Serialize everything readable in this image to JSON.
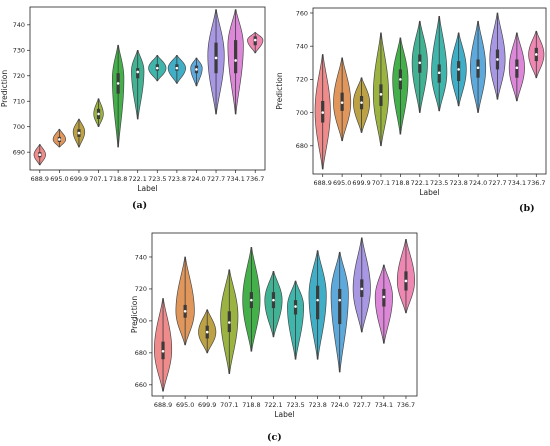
{
  "chart_data": [
    {
      "panel": "(a)",
      "type": "violin",
      "xlabel": "Label",
      "ylabel": "Prediction",
      "ylim": [
        683,
        747
      ],
      "yticks": [
        690,
        700,
        710,
        720,
        730,
        740
      ],
      "categories": [
        "688.9",
        "695.0",
        "699.9",
        "707.1",
        "718.8",
        "722.1",
        "723.5",
        "723.8",
        "724.0",
        "727.7",
        "734.1",
        "736.7"
      ],
      "colors": [
        "#f08b8b",
        "#e1975b",
        "#bca244",
        "#9bb341",
        "#43b04a",
        "#41b293",
        "#3fb5ab",
        "#3faec6",
        "#5ea9dc",
        "#a897e3",
        "#dc87d8",
        "#ee88b2"
      ],
      "violins": [
        {
          "min": 685,
          "max": 693,
          "q1": 688,
          "median": 689,
          "q3": 690,
          "peak": 689,
          "width": 0.55
        },
        {
          "min": 692,
          "max": 699,
          "q1": 694,
          "median": 695,
          "q3": 696,
          "peak": 695,
          "width": 0.6
        },
        {
          "min": 692,
          "max": 703,
          "q1": 696,
          "median": 697.5,
          "q3": 699,
          "peak": 698,
          "width": 0.55
        },
        {
          "min": 700,
          "max": 711,
          "q1": 703,
          "median": 705,
          "q3": 707,
          "peak": 705,
          "width": 0.45
        },
        {
          "min": 692,
          "max": 732,
          "q1": 713,
          "median": 717,
          "q3": 721,
          "peak": 719,
          "width": 0.55
        },
        {
          "min": 703,
          "max": 730,
          "q1": 719,
          "median": 721.5,
          "q3": 723,
          "peak": 722,
          "width": 0.6
        },
        {
          "min": 718,
          "max": 728,
          "q1": 722,
          "median": 723,
          "q3": 724.5,
          "peak": 723,
          "width": 0.85
        },
        {
          "min": 717,
          "max": 728,
          "q1": 722,
          "median": 723,
          "q3": 724.5,
          "peak": 723,
          "width": 0.85
        },
        {
          "min": 716,
          "max": 727,
          "q1": 721,
          "median": 722.5,
          "q3": 724,
          "peak": 723,
          "width": 0.55
        },
        {
          "min": 705,
          "max": 746,
          "q1": 721,
          "median": 727,
          "q3": 733,
          "peak": 728,
          "width": 0.8
        },
        {
          "min": 705,
          "max": 746,
          "q1": 721,
          "median": 726,
          "q3": 734,
          "peak": 732,
          "width": 0.75
        },
        {
          "min": 729,
          "max": 737,
          "q1": 732,
          "median": 734,
          "q3": 735.5,
          "peak": 734,
          "width": 0.75
        }
      ]
    },
    {
      "panel": "(b)",
      "type": "violin",
      "xlabel": "Label",
      "ylabel": "Prediction",
      "ylim": [
        663,
        763
      ],
      "yticks": [
        680,
        700,
        720,
        740,
        760
      ],
      "categories": [
        "688.9",
        "695.0",
        "699.9",
        "707.1",
        "718.8",
        "722.1",
        "723.5",
        "723.8",
        "724.0",
        "727.7",
        "734.1",
        "736.7"
      ],
      "colors": [
        "#f08b8b",
        "#e1975b",
        "#bca244",
        "#9bb341",
        "#43b04a",
        "#41b293",
        "#3fb5ab",
        "#3faec6",
        "#5ea9dc",
        "#a897e3",
        "#dc87d8",
        "#ee88b2"
      ],
      "violins": [
        {
          "min": 666,
          "max": 735,
          "q1": 694,
          "median": 700,
          "q3": 707,
          "peak": 701,
          "width": 0.75
        },
        {
          "min": 683,
          "max": 733,
          "q1": 701,
          "median": 706,
          "q3": 712,
          "peak": 706,
          "width": 0.85
        },
        {
          "min": 688,
          "max": 721,
          "q1": 702,
          "median": 706,
          "q3": 710,
          "peak": 706,
          "width": 0.8
        },
        {
          "min": 680,
          "max": 748,
          "q1": 704,
          "median": 711,
          "q3": 717,
          "peak": 711,
          "width": 0.75
        },
        {
          "min": 687,
          "max": 745,
          "q1": 714,
          "median": 720,
          "q3": 726,
          "peak": 720,
          "width": 0.75
        },
        {
          "min": 700,
          "max": 755,
          "q1": 724,
          "median": 730,
          "q3": 735,
          "peak": 730,
          "width": 0.75
        },
        {
          "min": 701,
          "max": 758,
          "q1": 718,
          "median": 724,
          "q3": 729,
          "peak": 724,
          "width": 0.75
        },
        {
          "min": 704,
          "max": 748,
          "q1": 719,
          "median": 726,
          "q3": 731,
          "peak": 726,
          "width": 0.75
        },
        {
          "min": 700,
          "max": 755,
          "q1": 721,
          "median": 727,
          "q3": 732,
          "peak": 727,
          "width": 0.75
        },
        {
          "min": 708,
          "max": 760,
          "q1": 726,
          "median": 732,
          "q3": 738,
          "peak": 732,
          "width": 0.75
        },
        {
          "min": 707,
          "max": 748,
          "q1": 721,
          "median": 727,
          "q3": 732,
          "peak": 727,
          "width": 0.75
        },
        {
          "min": 721,
          "max": 749,
          "q1": 731,
          "median": 735,
          "q3": 739,
          "peak": 735,
          "width": 0.75
        }
      ]
    },
    {
      "panel": "(c)",
      "type": "violin",
      "xlabel": "Label",
      "ylabel": "Prediction",
      "ylim": [
        653,
        755
      ],
      "yticks": [
        660,
        680,
        700,
        720,
        740
      ],
      "categories": [
        "688.9",
        "695.0",
        "699.9",
        "707.1",
        "718.8",
        "722.1",
        "723.5",
        "723.8",
        "724.0",
        "727.7",
        "734.1",
        "736.7"
      ],
      "colors": [
        "#f08b8b",
        "#e1975b",
        "#bca244",
        "#9bb341",
        "#43b04a",
        "#41b293",
        "#3fb5ab",
        "#3faec6",
        "#5ea9dc",
        "#a897e3",
        "#dc87d8",
        "#ee88b2"
      ],
      "violins": [
        {
          "min": 656,
          "max": 714,
          "q1": 676,
          "median": 681,
          "q3": 687,
          "peak": 682,
          "width": 0.75
        },
        {
          "min": 685,
          "max": 740,
          "q1": 702,
          "median": 706,
          "q3": 710,
          "peak": 706,
          "width": 0.8
        },
        {
          "min": 680,
          "max": 707,
          "q1": 689,
          "median": 693,
          "q3": 697,
          "peak": 693,
          "width": 0.75
        },
        {
          "min": 667,
          "max": 732,
          "q1": 693,
          "median": 699,
          "q3": 706,
          "peak": 703,
          "width": 0.75
        },
        {
          "min": 681,
          "max": 746,
          "q1": 708,
          "median": 713,
          "q3": 718,
          "peak": 713,
          "width": 0.75
        },
        {
          "min": 690,
          "max": 731,
          "q1": 708,
          "median": 713,
          "q3": 718,
          "peak": 713,
          "width": 0.75
        },
        {
          "min": 676,
          "max": 725,
          "q1": 704,
          "median": 709,
          "q3": 713,
          "peak": 709,
          "width": 0.7
        },
        {
          "min": 676,
          "max": 744,
          "q1": 701,
          "median": 713,
          "q3": 722,
          "peak": 716,
          "width": 0.75
        },
        {
          "min": 668,
          "max": 743,
          "q1": 698,
          "median": 713,
          "q3": 720,
          "peak": 717,
          "width": 0.75
        },
        {
          "min": 693,
          "max": 752,
          "q1": 715,
          "median": 720,
          "q3": 726,
          "peak": 720,
          "width": 0.75
        },
        {
          "min": 686,
          "max": 735,
          "q1": 709,
          "median": 715,
          "q3": 720,
          "peak": 715,
          "width": 0.75
        },
        {
          "min": 705,
          "max": 751,
          "q1": 719,
          "median": 725,
          "q3": 731,
          "peak": 725,
          "width": 0.75
        }
      ]
    }
  ]
}
